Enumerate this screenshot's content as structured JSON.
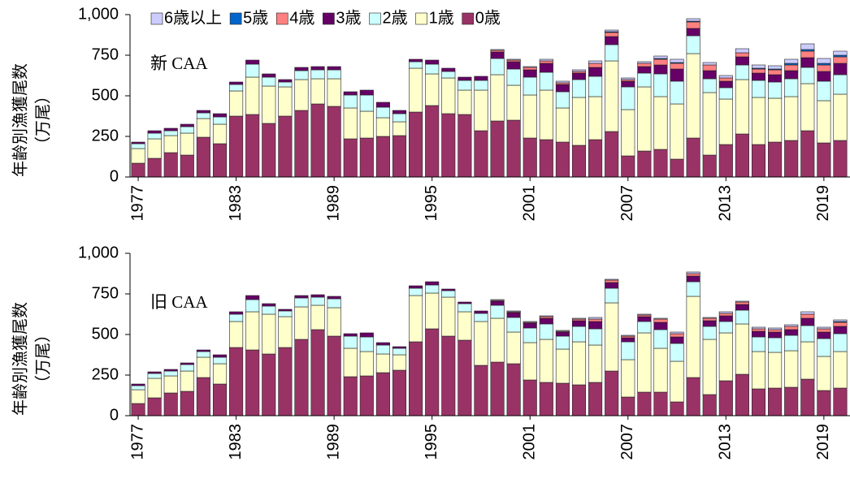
{
  "chart_data": [
    {
      "type": "bar",
      "stacked": true,
      "annotation": "新 CAA",
      "ylabel": [
        "年齢別漁獲尾数",
        "（万尾）"
      ],
      "legend": true,
      "x": [
        1977,
        1978,
        1979,
        1980,
        1981,
        1982,
        1983,
        1984,
        1985,
        1986,
        1987,
        1988,
        1989,
        1990,
        1991,
        1992,
        1993,
        1994,
        1995,
        1996,
        1997,
        1998,
        1999,
        2000,
        2001,
        2002,
        2003,
        2004,
        2005,
        2006,
        2007,
        2008,
        2009,
        2010,
        2011,
        2012,
        2013,
        2014,
        2015,
        2016,
        2017,
        2018,
        2019,
        2020
      ],
      "xlim": [
        1976.5,
        2020.5
      ],
      "xticks": [
        1977,
        1983,
        1989,
        1995,
        2001,
        2007,
        2013,
        2019
      ],
      "ylim": [
        0,
        1000
      ],
      "yticks": [
        0,
        250,
        500,
        750,
        {
          "value": 1000,
          "label": "1,000"
        }
      ],
      "series": [
        {
          "name": "0歳",
          "color": "#993366",
          "values": [
            85,
            115,
            150,
            135,
            245,
            205,
            375,
            385,
            330,
            375,
            410,
            450,
            435,
            235,
            240,
            250,
            255,
            400,
            440,
            390,
            385,
            285,
            345,
            350,
            240,
            230,
            215,
            195,
            230,
            280,
            130,
            160,
            170,
            110,
            240,
            135,
            200,
            265,
            200,
            215,
            225,
            285,
            210,
            225
          ]
        },
        {
          "name": "1歳",
          "color": "#ffffcc",
          "values": [
            90,
            120,
            105,
            135,
            115,
            120,
            155,
            230,
            230,
            180,
            190,
            155,
            170,
            190,
            165,
            115,
            85,
            270,
            195,
            220,
            150,
            250,
            285,
            215,
            265,
            305,
            210,
            295,
            265,
            435,
            285,
            395,
            325,
            340,
            520,
            385,
            280,
            335,
            290,
            270,
            270,
            290,
            260,
            285
          ]
        },
        {
          "name": "2歳",
          "color": "#ccffff",
          "values": [
            30,
            35,
            30,
            40,
            35,
            45,
            40,
            80,
            55,
            30,
            55,
            55,
            55,
            80,
            100,
            65,
            50,
            40,
            60,
            40,
            60,
            60,
            100,
            100,
            110,
            110,
            100,
            110,
            125,
            100,
            140,
            85,
            140,
            140,
            110,
            85,
            70,
            90,
            105,
            100,
            110,
            100,
            120,
            120
          ]
        },
        {
          "name": "3歳",
          "color": "#660066",
          "values": [
            10,
            15,
            15,
            15,
            15,
            20,
            15,
            25,
            20,
            15,
            20,
            20,
            20,
            20,
            30,
            30,
            20,
            15,
            25,
            20,
            20,
            25,
            40,
            45,
            45,
            55,
            45,
            40,
            55,
            50,
            35,
            40,
            55,
            75,
            45,
            50,
            40,
            50,
            45,
            45,
            50,
            60,
            60,
            70
          ]
        },
        {
          "name": "4歳",
          "color": "#ff8080",
          "values": [
            0,
            0,
            0,
            0,
            0,
            0,
            0,
            0,
            0,
            0,
            0,
            0,
            0,
            0,
            0,
            0,
            0,
            0,
            0,
            0,
            0,
            0,
            10,
            10,
            15,
            15,
            10,
            10,
            25,
            25,
            10,
            20,
            35,
            35,
            40,
            35,
            20,
            25,
            25,
            30,
            35,
            40,
            40,
            40
          ]
        },
        {
          "name": "5歳",
          "color": "#0066cc",
          "values": [
            0,
            0,
            0,
            0,
            0,
            0,
            0,
            0,
            0,
            0,
            0,
            0,
            0,
            0,
            0,
            0,
            0,
            0,
            0,
            0,
            0,
            0,
            0,
            0,
            0,
            0,
            0,
            0,
            0,
            5,
            0,
            0,
            5,
            5,
            5,
            0,
            0,
            0,
            5,
            5,
            10,
            10,
            10,
            10
          ]
        },
        {
          "name": "6歳以上",
          "color": "#ccccff",
          "values": [
            0,
            0,
            0,
            0,
            0,
            0,
            0,
            0,
            0,
            0,
            0,
            0,
            0,
            0,
            0,
            0,
            0,
            0,
            0,
            0,
            0,
            0,
            5,
            5,
            5,
            10,
            10,
            10,
            15,
            10,
            10,
            10,
            15,
            20,
            15,
            15,
            15,
            25,
            20,
            20,
            25,
            35,
            30,
            25
          ]
        }
      ]
    },
    {
      "type": "bar",
      "stacked": true,
      "annotation": "旧 CAA",
      "ylabel": [
        "年齢別漁獲尾数",
        "（万尾）"
      ],
      "legend": false,
      "x": [
        1977,
        1978,
        1979,
        1980,
        1981,
        1982,
        1983,
        1984,
        1985,
        1986,
        1987,
        1988,
        1989,
        1990,
        1991,
        1992,
        1993,
        1994,
        1995,
        1996,
        1997,
        1998,
        1999,
        2000,
        2001,
        2002,
        2003,
        2004,
        2005,
        2006,
        2007,
        2008,
        2009,
        2010,
        2011,
        2012,
        2013,
        2014,
        2015,
        2016,
        2017,
        2018,
        2019,
        2020
      ],
      "xlim": [
        1976.5,
        2020.5
      ],
      "xticks": [
        1977,
        1983,
        1989,
        1995,
        2001,
        2007,
        2013,
        2019
      ],
      "ylim": [
        0,
        1000
      ],
      "yticks": [
        0,
        250,
        500,
        750,
        {
          "value": 1000,
          "label": "1,000"
        }
      ],
      "series": [
        {
          "name": "0歳",
          "color": "#993366",
          "values": [
            75,
            110,
            140,
            150,
            235,
            195,
            420,
            405,
            380,
            420,
            470,
            530,
            490,
            240,
            245,
            265,
            280,
            455,
            535,
            490,
            465,
            310,
            330,
            320,
            220,
            205,
            200,
            190,
            205,
            275,
            115,
            145,
            145,
            85,
            235,
            130,
            215,
            255,
            165,
            170,
            175,
            225,
            155,
            170
          ]
        },
        {
          "name": "1歳",
          "color": "#ffffcc",
          "values": [
            85,
            120,
            105,
            125,
            125,
            125,
            160,
            235,
            245,
            190,
            200,
            150,
            175,
            175,
            150,
            115,
            95,
            285,
            220,
            240,
            175,
            270,
            270,
            195,
            230,
            265,
            210,
            265,
            230,
            420,
            230,
            365,
            270,
            250,
            500,
            340,
            295,
            310,
            230,
            220,
            225,
            230,
            210,
            225
          ]
        },
        {
          "name": "2歳",
          "color": "#ccffff",
          "values": [
            25,
            30,
            30,
            40,
            35,
            40,
            45,
            75,
            50,
            35,
            55,
            50,
            55,
            75,
            90,
            55,
            40,
            45,
            50,
            40,
            50,
            50,
            80,
            90,
            90,
            95,
            80,
            95,
            100,
            90,
            110,
            70,
            115,
            110,
            90,
            80,
            70,
            85,
            90,
            90,
            95,
            100,
            110,
            110
          ]
        },
        {
          "name": "3歳",
          "color": "#660066",
          "values": [
            10,
            10,
            10,
            10,
            10,
            15,
            15,
            25,
            15,
            10,
            15,
            15,
            15,
            15,
            25,
            15,
            10,
            15,
            20,
            10,
            10,
            15,
            25,
            30,
            30,
            35,
            25,
            35,
            45,
            35,
            25,
            30,
            45,
            40,
            35,
            35,
            35,
            35,
            35,
            35,
            35,
            45,
            40,
            45
          ]
        },
        {
          "name": "4歳",
          "color": "#ff8080",
          "values": [
            0,
            0,
            0,
            0,
            0,
            0,
            0,
            0,
            0,
            0,
            0,
            0,
            0,
            0,
            0,
            0,
            0,
            0,
            0,
            0,
            0,
            0,
            5,
            5,
            5,
            10,
            5,
            10,
            15,
            15,
            10,
            10,
            20,
            20,
            15,
            15,
            15,
            15,
            15,
            15,
            20,
            25,
            20,
            25
          ]
        },
        {
          "name": "5歳",
          "color": "#0066cc",
          "values": [
            0,
            0,
            0,
            0,
            0,
            0,
            0,
            0,
            0,
            0,
            0,
            0,
            0,
            0,
            0,
            0,
            0,
            0,
            0,
            0,
            0,
            0,
            0,
            0,
            0,
            0,
            0,
            0,
            0,
            0,
            0,
            0,
            0,
            0,
            0,
            0,
            0,
            0,
            0,
            0,
            0,
            0,
            0,
            5
          ]
        },
        {
          "name": "6歳以上",
          "color": "#ccccff",
          "values": [
            0,
            0,
            0,
            0,
            0,
            0,
            0,
            0,
            0,
            0,
            0,
            0,
            0,
            0,
            0,
            0,
            0,
            0,
            0,
            0,
            0,
            0,
            5,
            5,
            5,
            5,
            5,
            5,
            10,
            5,
            5,
            5,
            5,
            10,
            10,
            5,
            10,
            5,
            10,
            10,
            10,
            15,
            10,
            10
          ]
        }
      ]
    }
  ]
}
